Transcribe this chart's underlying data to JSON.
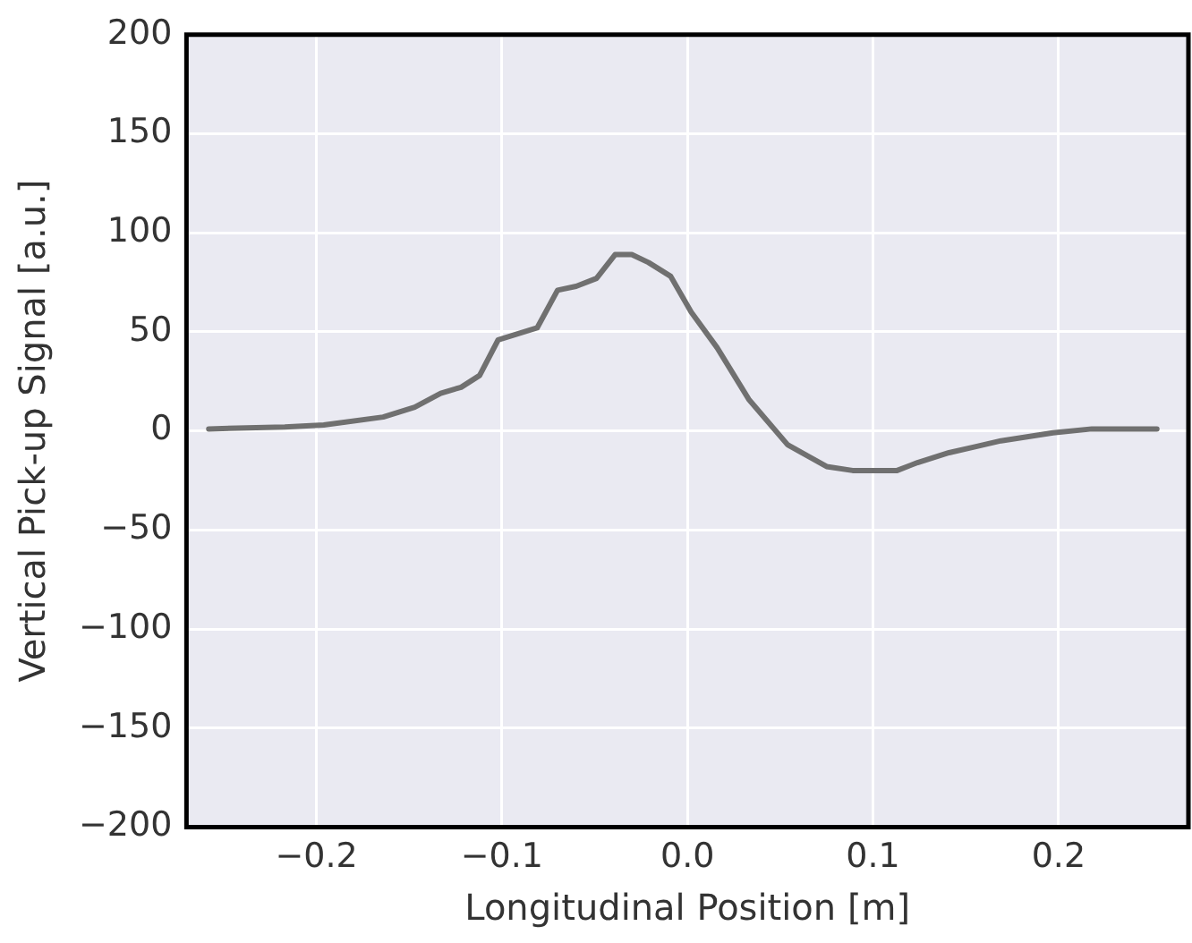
{
  "chart_data": {
    "type": "line",
    "xlabel": "Longitudinal Position [m]",
    "ylabel": "Vertical Pick-up Signal [a.u.]",
    "x": [
      -0.258,
      -0.217,
      -0.196,
      -0.164,
      -0.147,
      -0.133,
      -0.122,
      -0.112,
      -0.102,
      -0.081,
      -0.07,
      -0.06,
      -0.049,
      -0.039,
      -0.03,
      -0.021,
      -0.009,
      0.002,
      0.016,
      0.033,
      0.054,
      0.075,
      0.089,
      0.103,
      0.113,
      0.124,
      0.141,
      0.155,
      0.169,
      0.197,
      0.218,
      0.253
    ],
    "series": [
      {
        "color": "#707070",
        "values": [
          1,
          2,
          3,
          7,
          12,
          19,
          22,
          28,
          46,
          52,
          71,
          73,
          77,
          89,
          89,
          85,
          78,
          60,
          42,
          16,
          -7,
          -18,
          -20,
          -20,
          -20,
          -16,
          -11,
          -8,
          -5,
          -1,
          1,
          1
        ]
      }
    ],
    "xlim": [
      -0.27,
      0.27
    ],
    "xticks": [
      {
        "value": -0.2,
        "label": "−0.2"
      },
      {
        "value": -0.1,
        "label": "−0.1"
      },
      {
        "value": 0,
        "label": "0.0"
      },
      {
        "value": 0.1,
        "label": "0.1"
      },
      {
        "value": 0.2,
        "label": "0.2"
      }
    ],
    "ylim": [
      -200,
      200
    ],
    "yticks": [
      {
        "value": -200,
        "label": "−200"
      },
      {
        "value": -150,
        "label": "−150"
      },
      {
        "value": -100,
        "label": "−100"
      },
      {
        "value": -50,
        "label": "−50"
      },
      0,
      50,
      100,
      150,
      200
    ],
    "grid": true,
    "marker": "none",
    "line_style": "solid"
  }
}
